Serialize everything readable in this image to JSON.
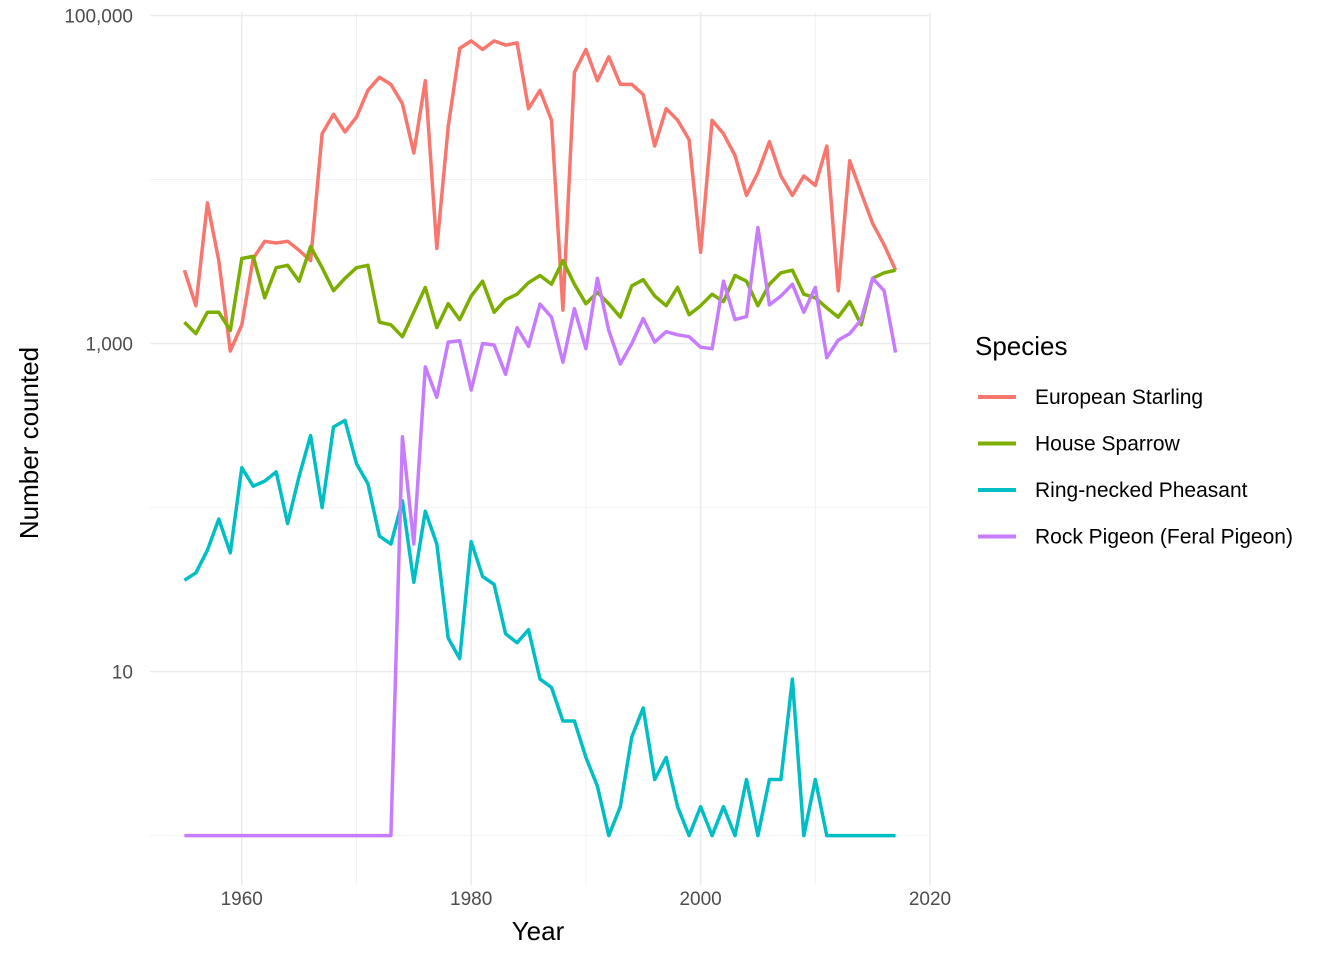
{
  "chart_data": {
    "type": "line",
    "title": "",
    "xlabel": "Year",
    "ylabel": "Number counted",
    "y_scale": "log10",
    "xlim": [
      1952,
      2020
    ],
    "ylim": [
      0.5,
      105000
    ],
    "x_ticks": [
      1960,
      1980,
      2000,
      2020
    ],
    "x_tick_labels": [
      "1960",
      "1980",
      "2000",
      "2020"
    ],
    "y_ticks": [
      10,
      1000,
      100000
    ],
    "y_tick_labels": [
      "10",
      "1,000",
      "100,000"
    ],
    "grid": true,
    "legend": {
      "title": "Species",
      "position": "right"
    },
    "x": [
      1955,
      1956,
      1957,
      1958,
      1959,
      1960,
      1961,
      1962,
      1963,
      1964,
      1965,
      1966,
      1967,
      1968,
      1969,
      1970,
      1971,
      1972,
      1973,
      1974,
      1975,
      1976,
      1977,
      1978,
      1979,
      1980,
      1981,
      1982,
      1983,
      1984,
      1985,
      1986,
      1987,
      1988,
      1989,
      1990,
      1991,
      1992,
      1993,
      1994,
      1995,
      1996,
      1997,
      1998,
      1999,
      2000,
      2001,
      2002,
      2003,
      2004,
      2005,
      2006,
      2007,
      2008,
      2009,
      2010,
      2011,
      2012,
      2013,
      2014,
      2015,
      2016,
      2017
    ],
    "series": [
      {
        "name": "European Starling",
        "color": "#F8766D",
        "values": [
          2800,
          1700,
          7200,
          3200,
          900,
          1300,
          3300,
          4200,
          4100,
          4200,
          3700,
          3200,
          19000,
          25000,
          19500,
          24000,
          35000,
          42000,
          38000,
          29000,
          14500,
          40000,
          3800,
          21000,
          63000,
          70000,
          62000,
          70000,
          66000,
          68000,
          27000,
          35000,
          23000,
          1600,
          45000,
          62000,
          40000,
          56000,
          38000,
          38000,
          33000,
          16000,
          27000,
          23000,
          17500,
          3600,
          23000,
          19000,
          14000,
          8000,
          11000,
          17000,
          10500,
          8000,
          10500,
          9200,
          16000,
          2100,
          13000,
          8300,
          5400,
          4000,
          2800
        ]
      },
      {
        "name": "House Sparrow",
        "color": "#7CAE00",
        "values": [
          1350,
          1150,
          1550,
          1550,
          1200,
          3300,
          3400,
          1900,
          2900,
          3000,
          2400,
          3900,
          2900,
          2100,
          2500,
          2900,
          3000,
          1350,
          1300,
          1100,
          1550,
          2200,
          1250,
          1750,
          1400,
          1950,
          2400,
          1550,
          1850,
          2000,
          2350,
          2600,
          2300,
          3200,
          2300,
          1750,
          2050,
          1750,
          1450,
          2250,
          2450,
          1950,
          1700,
          2200,
          1500,
          1700,
          2000,
          1800,
          2600,
          2400,
          1700,
          2300,
          2700,
          2800,
          2000,
          1900,
          1650,
          1450,
          1800,
          1300,
          2500,
          2700,
          2800
        ]
      },
      {
        "name": "Ring-necked Pheasant",
        "color": "#00BFC4",
        "values": [
          36,
          40,
          55,
          85,
          53,
          175,
          135,
          145,
          165,
          80,
          155,
          275,
          100,
          310,
          340,
          185,
          140,
          67,
          60,
          110,
          35,
          95,
          60,
          16,
          12,
          62,
          38,
          34,
          17,
          15,
          18,
          9,
          8,
          5,
          5,
          3,
          2,
          1,
          1.5,
          4,
          6,
          2.2,
          3,
          1.5,
          1,
          1.5,
          1,
          1.5,
          1,
          2.2,
          1,
          2.2,
          2.2,
          9,
          1,
          2.2,
          1,
          1,
          1,
          1,
          1,
          1,
          1
        ]
      },
      {
        "name": "Rock Pigeon (Feral Pigeon)",
        "color": "#C77CFF",
        "values": [
          1,
          1,
          1,
          1,
          1,
          1,
          1,
          1,
          1,
          1,
          1,
          1,
          1,
          1,
          1,
          1,
          1,
          1,
          1,
          270,
          60,
          720,
          470,
          1020,
          1040,
          520,
          1000,
          980,
          650,
          1250,
          960,
          1740,
          1450,
          770,
          1630,
          930,
          2500,
          1200,
          750,
          1000,
          1420,
          1020,
          1180,
          1130,
          1100,
          950,
          930,
          2400,
          1400,
          1460,
          5100,
          1720,
          1950,
          2300,
          1550,
          2200,
          820,
          1050,
          1150,
          1400,
          2500,
          2100,
          880
        ]
      }
    ]
  }
}
